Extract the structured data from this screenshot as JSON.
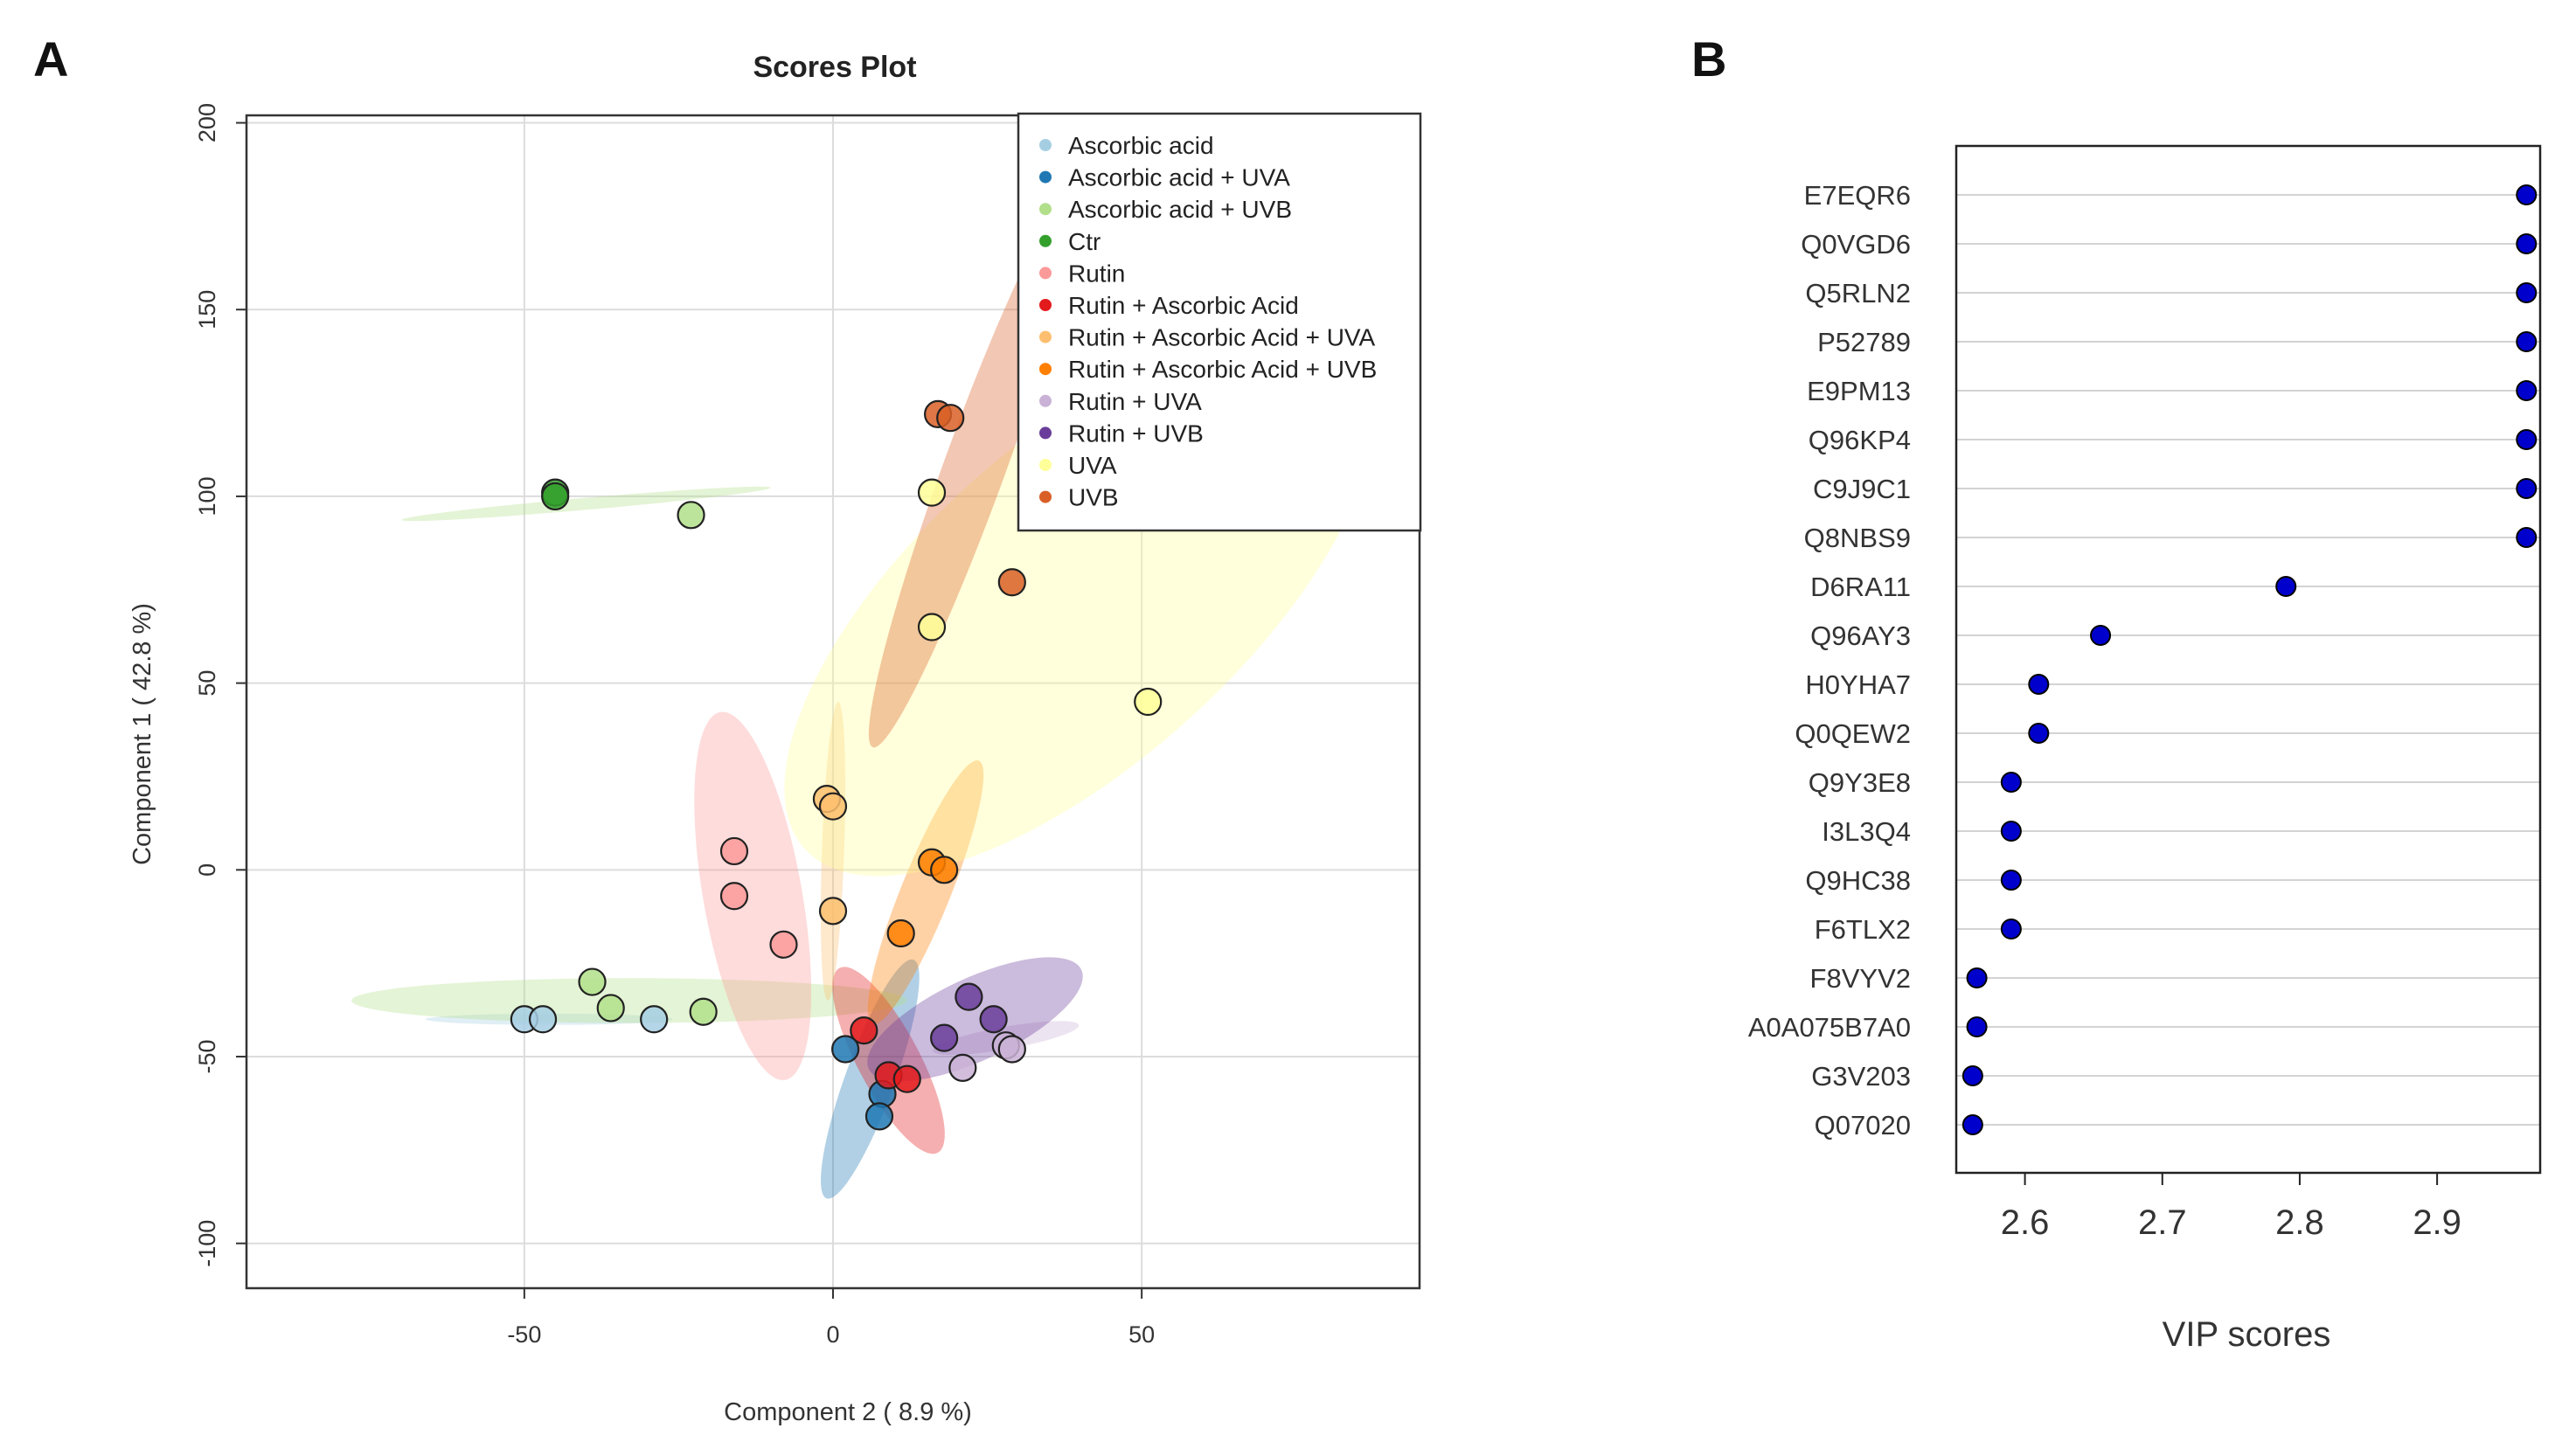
{
  "panel_labels": {
    "a": "A",
    "b": "B"
  },
  "chart_data": [
    {
      "type": "scatter",
      "title": "Scores Plot",
      "xlabel": "Component 2 ( 8.9 %)",
      "ylabel": "Component 1 ( 42.8 %)",
      "xlim": [
        -95,
        95
      ],
      "ylim": [
        -112,
        202
      ],
      "xticks": [
        -50,
        0,
        50
      ],
      "yticks": [
        -100,
        -50,
        0,
        50,
        100,
        150,
        200
      ],
      "grid": true,
      "legend_position": "top-right",
      "series": [
        {
          "name": "Ascorbic acid",
          "color": "#a6cee3",
          "points": [
            [
              -50,
              -40
            ],
            [
              -47,
              -40
            ],
            [
              -29,
              -40
            ]
          ],
          "ellipse": {
            "center": [
              -46,
              -40
            ],
            "rx": 20,
            "ry": 1.5,
            "angle": 0
          }
        },
        {
          "name": "Ascorbic acid + UVA",
          "color": "#1f78b4",
          "points": [
            [
              2,
              -48
            ],
            [
              8,
              -60
            ],
            [
              7.5,
              -66
            ]
          ],
          "ellipse": {
            "center": [
              6,
              -56
            ],
            "rx": 4,
            "ry": 34,
            "angle": 20
          }
        },
        {
          "name": "Ascorbic acid + UVB",
          "color": "#b2df8a",
          "points": [
            [
              -39,
              -30
            ],
            [
              -36,
              -37
            ],
            [
              -21,
              -38
            ]
          ],
          "ellipse": {
            "center": [
              -33,
              -35
            ],
            "rx": 45,
            "ry": 6,
            "angle": 0
          }
        },
        {
          "name": "Ctr",
          "color": "#33a02c",
          "points": [
            [
              -45,
              101
            ],
            [
              -45,
              100
            ]
          ],
          "ellipse": null
        },
        {
          "name": "Rutin",
          "color": "#fb9a99",
          "points": [
            [
              -16,
              5
            ],
            [
              -16,
              -7
            ],
            [
              -8,
              -20
            ]
          ],
          "ellipse": {
            "center": [
              -13,
              -7
            ],
            "rx": 8,
            "ry": 50,
            "angle": -10
          }
        },
        {
          "name": "Rutin + Ascorbic Acid",
          "color": "#e31a1c",
          "points": [
            [
              5,
              -43
            ],
            [
              9,
              -55
            ],
            [
              12,
              -56
            ]
          ],
          "ellipse": {
            "center": [
              9,
              -51
            ],
            "rx": 5,
            "ry": 28,
            "angle": -28
          }
        },
        {
          "name": "Rutin + Ascorbic Acid + UVA",
          "color": "#fdbf6f",
          "points": [
            [
              -1,
              19
            ],
            [
              0,
              17
            ],
            [
              0,
              -11
            ]
          ],
          "ellipse": {
            "center": [
              0,
              5
            ],
            "rx": 1.8,
            "ry": 40,
            "angle": 2
          }
        },
        {
          "name": "Rutin + Ascorbic Acid + UVB",
          "color": "#ff7f00",
          "points": [
            [
              16,
              2
            ],
            [
              18,
              0
            ],
            [
              11,
              -17
            ]
          ],
          "ellipse": {
            "center": [
              15,
              -6
            ],
            "rx": 4,
            "ry": 38,
            "angle": 22
          }
        },
        {
          "name": "Rutin + UVA",
          "color": "#cab2d6",
          "points": [
            [
              21,
              -53
            ],
            [
              28,
              -47
            ],
            [
              29,
              -48
            ]
          ],
          "ellipse": {
            "center": [
              28,
              -45
            ],
            "rx": 12,
            "ry": 3,
            "angle": -10
          }
        },
        {
          "name": "Rutin + UVB",
          "color": "#6a3d9a",
          "points": [
            [
              22,
              -34
            ],
            [
              26,
              -40
            ],
            [
              18,
              -45
            ]
          ],
          "ellipse": {
            "center": [
              23,
              -40
            ],
            "rx": 19,
            "ry": 11,
            "angle": -25
          }
        },
        {
          "name": "UVA",
          "color": "#ffff99",
          "points": [
            [
              16,
              101
            ],
            [
              16,
              65
            ],
            [
              51,
              45
            ]
          ],
          "ellipse": {
            "center": [
              40,
              72
            ],
            "rx": 60,
            "ry": 43,
            "angle": -42
          }
        },
        {
          "name": "UVB",
          "color": "#d95f26",
          "points": [
            [
              17,
              122
            ],
            [
              19,
              121
            ],
            [
              29,
              77
            ]
          ],
          "ellipse": {
            "center": [
              23,
              108
            ],
            "rx": 5,
            "ry": 80,
            "angle": 20
          }
        }
      ],
      "extra_points": [
        {
          "series": "Ascorbic acid + UVB",
          "point": [
            -23,
            95
          ]
        }
      ],
      "extra_ellipses": [
        {
          "series": "Ascorbic acid + UVB",
          "center": [
            -40,
            98
          ],
          "rx": 30,
          "ry": 1.6,
          "angle": -5
        }
      ]
    },
    {
      "type": "dot",
      "xlabel": "VIP scores",
      "xlim": [
        2.55,
        2.975
      ],
      "xticks": [
        2.6,
        2.7,
        2.8,
        2.9
      ],
      "xtick_labels": [
        "2.6",
        "2.7",
        "2.8",
        "2.9"
      ],
      "grid": true,
      "point_color": "#0000cc",
      "categories": [
        "E7EQR6",
        "Q0VGD6",
        "Q5RLN2",
        "P52789",
        "E9PM13",
        "Q96KP4",
        "C9J9C1",
        "Q8NBS9",
        "D6RA11",
        "Q96AY3",
        "H0YHA7",
        "Q0QEW2",
        "Q9Y3E8",
        "I3L3Q4",
        "Q9HC38",
        "F6TLX2",
        "F8VYV2",
        "A0A075B7A0",
        "G3V203",
        "Q07020"
      ],
      "values": [
        2.965,
        2.965,
        2.965,
        2.965,
        2.965,
        2.965,
        2.965,
        2.965,
        2.79,
        2.655,
        2.61,
        2.61,
        2.59,
        2.59,
        2.59,
        2.59,
        2.565,
        2.565,
        2.562,
        2.562
      ]
    }
  ]
}
